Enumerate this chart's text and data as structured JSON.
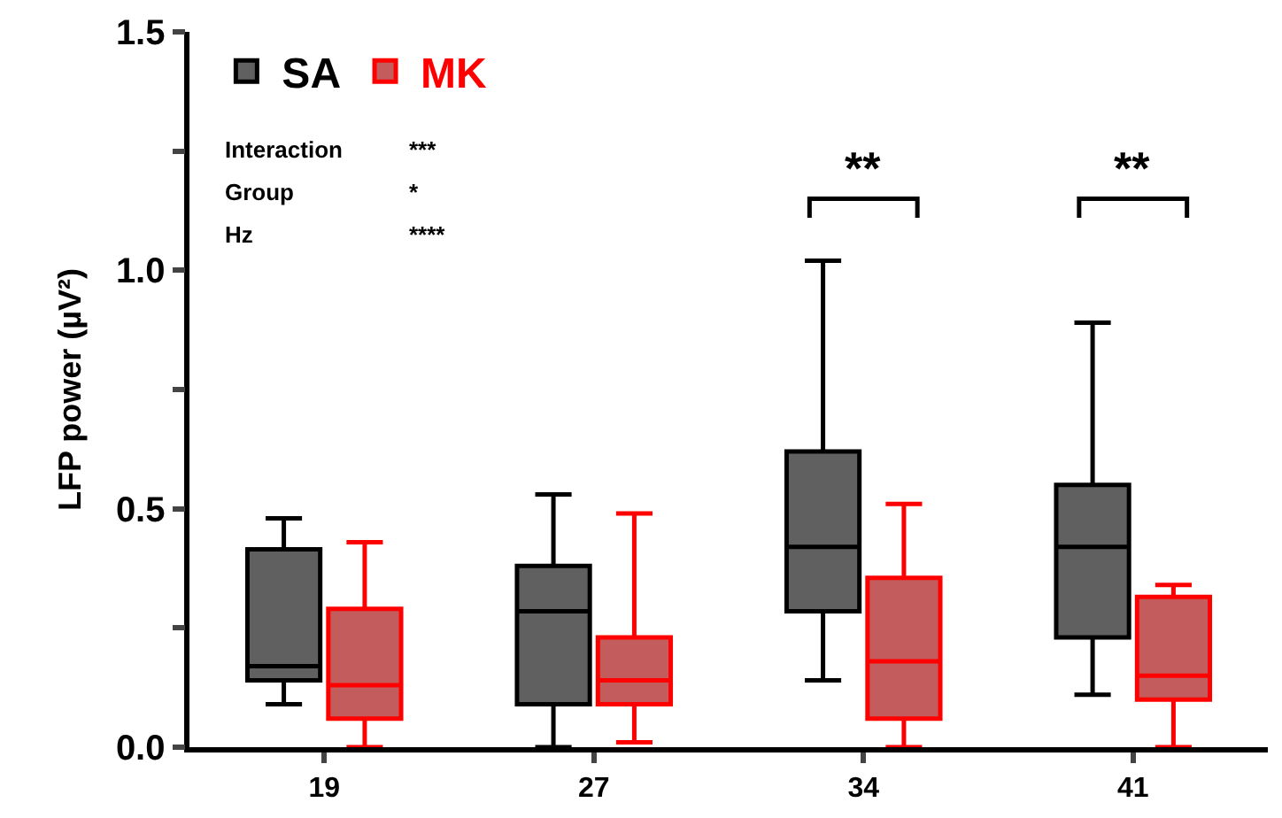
{
  "chart_data": {
    "type": "box",
    "ylabel": "LFP power (µV²)",
    "categories": [
      "19",
      "27",
      "34",
      "41"
    ],
    "series": [
      {
        "name": "SA",
        "color": "#606060",
        "boxes": [
          {
            "low": 0.09,
            "q1": 0.14,
            "median": 0.17,
            "q3": 0.415,
            "high": 0.48
          },
          {
            "low": 0.0,
            "q1": 0.09,
            "median": 0.285,
            "q3": 0.38,
            "high": 0.53
          },
          {
            "low": 0.14,
            "q1": 0.285,
            "median": 0.42,
            "q3": 0.62,
            "high": 1.02
          },
          {
            "low": 0.11,
            "q1": 0.23,
            "median": 0.42,
            "q3": 0.55,
            "high": 0.89
          }
        ]
      },
      {
        "name": "MK",
        "color": "#c35c5c",
        "boxes": [
          {
            "low": 0.0,
            "q1": 0.06,
            "median": 0.13,
            "q3": 0.29,
            "high": 0.43
          },
          {
            "low": 0.01,
            "q1": 0.09,
            "median": 0.14,
            "q3": 0.23,
            "high": 0.49
          },
          {
            "low": 0.0,
            "q1": 0.06,
            "median": 0.18,
            "q3": 0.355,
            "high": 0.51
          },
          {
            "low": 0.0,
            "q1": 0.1,
            "median": 0.15,
            "q3": 0.315,
            "high": 0.34
          }
        ]
      }
    ],
    "ylim": [
      0,
      1.5
    ],
    "yticks": [
      {
        "value": 0,
        "label": "0.0"
      },
      {
        "value": 0.25,
        "label": null
      },
      {
        "value": 0.5,
        "label": "0.5"
      },
      {
        "value": 0.75,
        "label": null
      },
      {
        "value": 1.0,
        "label": "1.0"
      },
      {
        "value": 1.25,
        "label": null
      },
      {
        "value": 1.5,
        "label": "1.5"
      }
    ],
    "legend": "top left",
    "annotations": [
      "Interaction ***",
      "Group *",
      "Hz ****",
      "**",
      "**"
    ]
  }
}
